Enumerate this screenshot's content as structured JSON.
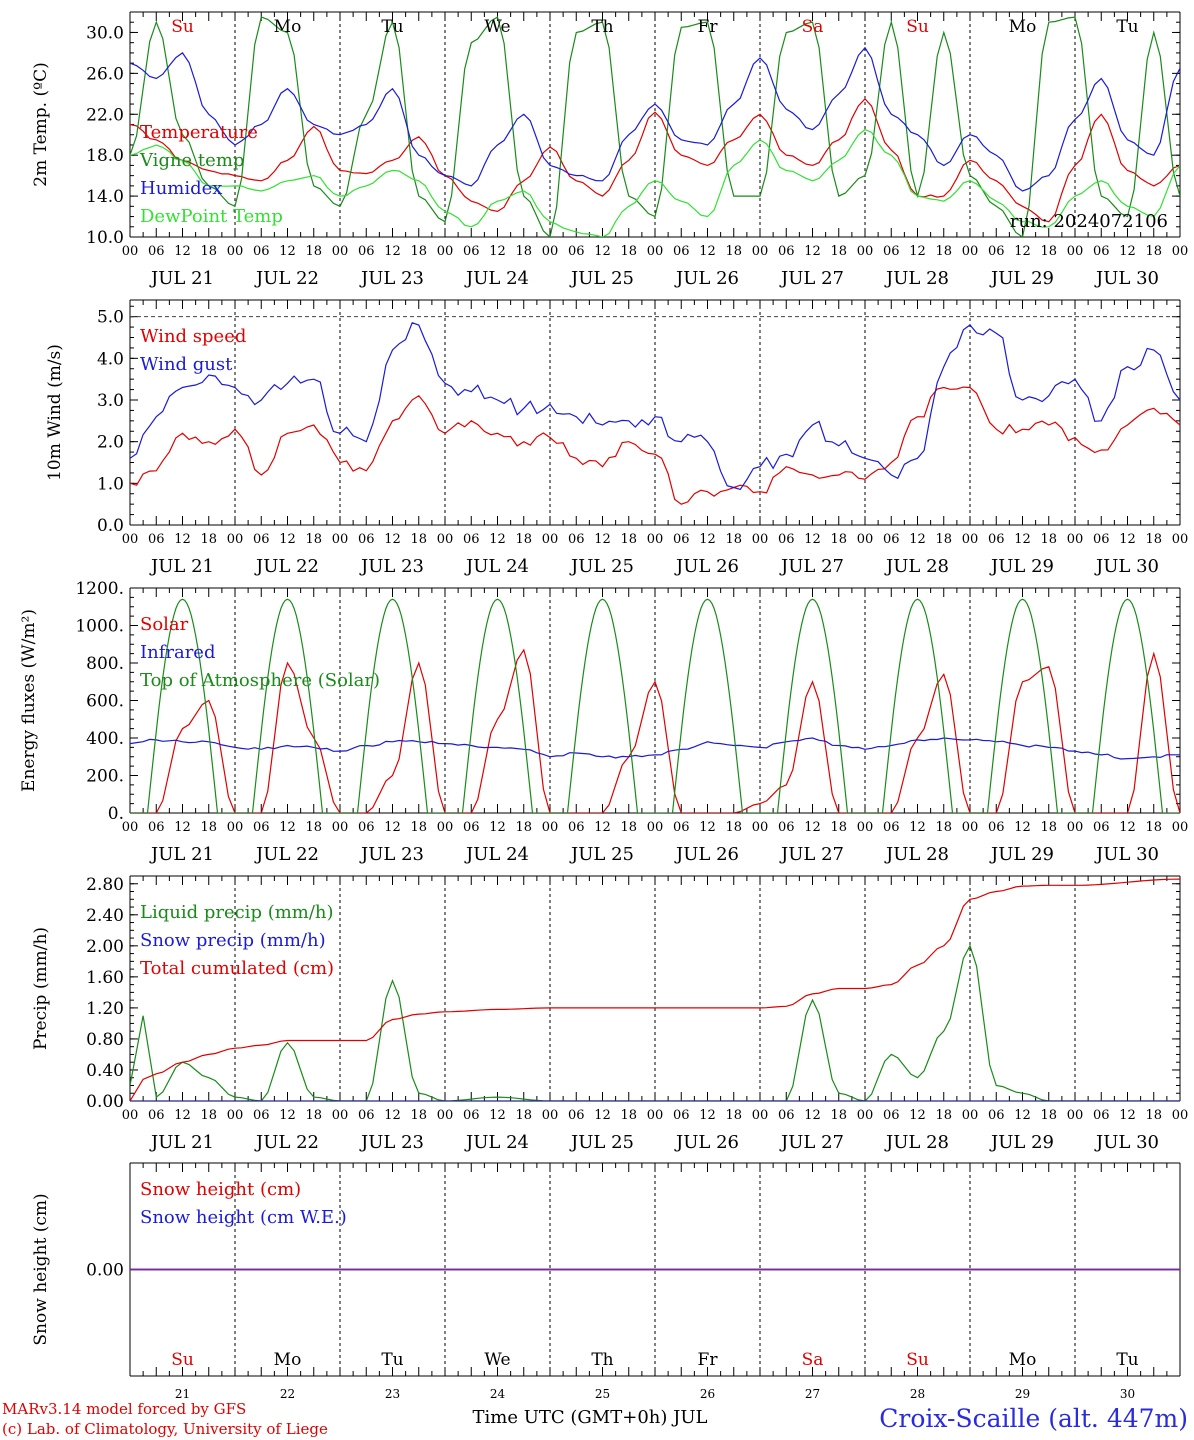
{
  "colors": {
    "red": "#e00000",
    "green": "#1a8a1a",
    "blue": "#1a1ad8",
    "lightgreen": "#33e033",
    "purple": "#7a2a9a",
    "black": "#000000"
  },
  "weekdays": [
    {
      "label": "Su",
      "color": "#e00000"
    },
    {
      "label": "Mo",
      "color": "#000000"
    },
    {
      "label": "Tu",
      "color": "#000000"
    },
    {
      "label": "We",
      "color": "#000000"
    },
    {
      "label": "Th",
      "color": "#000000"
    },
    {
      "label": "Fr",
      "color": "#000000"
    },
    {
      "label": "Sa",
      "color": "#e00000"
    },
    {
      "label": "Su",
      "color": "#e00000"
    },
    {
      "label": "Mo",
      "color": "#000000"
    },
    {
      "label": "Tu",
      "color": "#000000"
    }
  ],
  "day_labels": [
    "JUL 21",
    "JUL 22",
    "JUL 23",
    "JUL 24",
    "JUL 25",
    "JUL 26",
    "JUL 27",
    "JUL 28",
    "JUL 29",
    "JUL 30"
  ],
  "day_numbers": [
    "21",
    "22",
    "23",
    "24",
    "25",
    "26",
    "27",
    "28",
    "29",
    "30"
  ],
  "hour_labels": [
    "00",
    "06",
    "12",
    "18"
  ],
  "footer": {
    "model": "MARv3.14 model forced by GFS",
    "credit": "(c) Lab. of Climatology, University of Liege",
    "xlabel": "Time UTC (GMT+0h) JUL",
    "station": "Croix-Scaille (alt. 447m)"
  },
  "chart_data": [
    {
      "type": "line",
      "ylabel": "2m Temp. (ºC)",
      "ylim": [
        10,
        32
      ],
      "yticks": [
        "10.0",
        "14.0",
        "18.0",
        "22.0",
        "26.0",
        "30.0"
      ],
      "run_label": "run: 2024072106",
      "x_hours": [
        0,
        6,
        12,
        18,
        24,
        30,
        36,
        42,
        48,
        54,
        60,
        66,
        72,
        78,
        84,
        90,
        96,
        102,
        108,
        114,
        120,
        126,
        132,
        138,
        144,
        150,
        156,
        162,
        168,
        174,
        180,
        186,
        192,
        198,
        204,
        210,
        216,
        222,
        228,
        234,
        240
      ],
      "series": [
        {
          "name": "Temperature",
          "color": "#e00000",
          "values": [
            21.0,
            19.5,
            17.5,
            16.5,
            16.0,
            15.5,
            17.5,
            20.8,
            16.5,
            16.2,
            17.5,
            19.8,
            16.0,
            13.5,
            12.5,
            15.5,
            18.8,
            15.5,
            14.0,
            17.5,
            22.2,
            18.0,
            17.0,
            19.5,
            22.0,
            18.0,
            17.0,
            19.5,
            23.5,
            18.5,
            14.0,
            14.0,
            17.5,
            15.5,
            13.0,
            11.5,
            17.0,
            22.0,
            16.5,
            15.0,
            17.0
          ]
        },
        {
          "name": "Vigne temp",
          "color": "#1a8a1a",
          "values": [
            18.0,
            31.0,
            20.0,
            15.0,
            13.0,
            31.5,
            30.0,
            15.0,
            13.0,
            22.0,
            31.0,
            14.0,
            11.5,
            29.0,
            31.5,
            14.0,
            10.0,
            30.0,
            31.0,
            14.0,
            12.0,
            30.5,
            31.0,
            14.0,
            14.0,
            30.0,
            31.0,
            14.0,
            16.0,
            31.0,
            14.0,
            30.0,
            16.0,
            13.0,
            10.0,
            31.0,
            31.5,
            14.0,
            12.0,
            30.0,
            14.0
          ]
        },
        {
          "name": "Humidex",
          "color": "#1a1ad8",
          "values": [
            27.0,
            25.5,
            28.0,
            22.0,
            19.0,
            21.0,
            24.5,
            21.0,
            20.0,
            21.0,
            24.5,
            18.0,
            16.0,
            15.0,
            19.0,
            22.0,
            17.0,
            16.0,
            15.5,
            20.0,
            23.0,
            19.5,
            19.0,
            23.0,
            27.5,
            22.5,
            20.5,
            24.0,
            28.5,
            22.0,
            20.0,
            17.0,
            20.0,
            18.0,
            14.5,
            16.0,
            21.5,
            25.5,
            19.5,
            18.0,
            26.5
          ]
        },
        {
          "name": "DewPoint Temp",
          "color": "#33e033",
          "values": [
            18.0,
            19.0,
            17.5,
            15.0,
            15.0,
            14.5,
            15.5,
            16.0,
            14.0,
            15.0,
            16.5,
            15.5,
            12.5,
            11.0,
            13.5,
            14.5,
            11.5,
            10.5,
            10.0,
            13.0,
            15.5,
            13.5,
            12.0,
            17.0,
            19.5,
            16.5,
            15.5,
            17.5,
            20.5,
            18.0,
            14.0,
            13.5,
            15.5,
            13.5,
            11.5,
            11.0,
            14.0,
            15.5,
            13.0,
            12.0,
            17.0
          ]
        }
      ]
    },
    {
      "type": "line",
      "ylabel": "10m Wind (m/s)",
      "ylim": [
        0,
        5.4
      ],
      "yticks": [
        "0.0",
        "1.0",
        "2.0",
        "3.0",
        "4.0",
        "5.0"
      ],
      "ref_line": 5.0,
      "x_hours": [
        0,
        6,
        12,
        18,
        24,
        30,
        36,
        42,
        48,
        54,
        60,
        66,
        72,
        78,
        84,
        90,
        96,
        102,
        108,
        114,
        120,
        126,
        132,
        138,
        144,
        150,
        156,
        162,
        168,
        174,
        180,
        186,
        192,
        198,
        204,
        210,
        216,
        222,
        228,
        234,
        240
      ],
      "series": [
        {
          "name": "Wind speed",
          "color": "#e00000",
          "values": [
            1.0,
            1.3,
            2.2,
            2.0,
            2.3,
            1.2,
            2.2,
            2.4,
            1.5,
            1.3,
            2.5,
            3.1,
            2.2,
            2.5,
            2.2,
            2.0,
            2.1,
            1.6,
            1.4,
            2.0,
            1.7,
            0.5,
            0.8,
            0.9,
            0.8,
            1.4,
            1.2,
            1.2,
            1.1,
            1.5,
            2.6,
            3.3,
            3.3,
            2.3,
            2.3,
            2.4,
            2.1,
            1.8,
            2.4,
            2.8,
            2.4
          ]
        },
        {
          "name": "Wind gust",
          "color": "#1a1ad8",
          "values": [
            1.6,
            2.6,
            3.3,
            3.6,
            3.3,
            3.0,
            3.4,
            3.5,
            2.2,
            2.0,
            4.2,
            4.8,
            3.4,
            3.2,
            3.0,
            2.8,
            2.9,
            2.6,
            2.4,
            2.5,
            2.6,
            2.0,
            2.0,
            0.9,
            1.4,
            1.7,
            2.4,
            1.9,
            1.6,
            1.2,
            1.6,
            3.8,
            4.8,
            4.6,
            3.0,
            3.1,
            3.5,
            2.5,
            3.8,
            4.2,
            3.0
          ]
        }
      ]
    },
    {
      "type": "line",
      "ylabel": "Energy fluxes (W/m²)",
      "ylim": [
        0,
        1200
      ],
      "yticks": [
        "0.",
        "200.",
        "400.",
        "600.",
        "800.",
        "1000.",
        "1200."
      ],
      "x_hours": [
        0,
        6,
        12,
        18,
        24,
        30,
        36,
        42,
        48,
        54,
        60,
        66,
        72,
        78,
        84,
        90,
        96,
        102,
        108,
        114,
        120,
        126,
        132,
        138,
        144,
        150,
        156,
        162,
        168,
        174,
        180,
        186,
        192,
        198,
        204,
        210,
        216,
        222,
        228,
        234,
        240
      ],
      "series": [
        {
          "name": "Solar",
          "color": "#e00000",
          "values": [
            0,
            0,
            450,
            600,
            0,
            0,
            800,
            400,
            0,
            0,
            200,
            800,
            0,
            0,
            500,
            870,
            0,
            0,
            0,
            300,
            700,
            0,
            0,
            0,
            50,
            150,
            700,
            0,
            0,
            0,
            400,
            740,
            0,
            0,
            700,
            780,
            0,
            0,
            0,
            850,
            0
          ]
        },
        {
          "name": "Infrared",
          "color": "#1a1ad8",
          "values": [
            370,
            390,
            380,
            380,
            350,
            340,
            360,
            350,
            330,
            360,
            380,
            380,
            370,
            360,
            350,
            340,
            300,
            320,
            300,
            300,
            310,
            340,
            380,
            360,
            350,
            380,
            400,
            360,
            340,
            360,
            390,
            400,
            390,
            380,
            360,
            350,
            330,
            310,
            290,
            300,
            310
          ]
        },
        {
          "name": "Top of Atmosphere (Solar)",
          "color": "#1a8a1a",
          "values": [
            0,
            0,
            0,
            0,
            0,
            0,
            0,
            0,
            0,
            0,
            0,
            0,
            0,
            0,
            0,
            0,
            0,
            0,
            0,
            0,
            0,
            0,
            0,
            0,
            0,
            0,
            0,
            0,
            0,
            0,
            0,
            0,
            0,
            0,
            0,
            0,
            0,
            0,
            0,
            0,
            0
          ],
          "peak": 1140,
          "day_start_hour": 4,
          "day_end_hour": 20
        }
      ]
    },
    {
      "type": "line",
      "ylabel": "Precip (mm/h)",
      "ylim": [
        0,
        2.9
      ],
      "yticks": [
        "0.00",
        "0.40",
        "0.80",
        "1.20",
        "1.60",
        "2.00",
        "2.40",
        "2.80"
      ],
      "x_hours": [
        0,
        3,
        6,
        12,
        18,
        24,
        30,
        36,
        42,
        48,
        54,
        60,
        66,
        72,
        84,
        96,
        120,
        144,
        150,
        156,
        162,
        168,
        174,
        180,
        186,
        192,
        198,
        204,
        210,
        216,
        240
      ],
      "series": [
        {
          "name": "Liquid precip (mm/h)",
          "color": "#1a8a1a",
          "values": [
            0.2,
            1.1,
            0.05,
            0.5,
            0.3,
            0.05,
            0.0,
            0.75,
            0.05,
            0.0,
            0.0,
            1.55,
            0.1,
            0.0,
            0.05,
            0.0,
            0.0,
            0.0,
            0.0,
            1.3,
            0.1,
            0.0,
            0.6,
            0.3,
            0.9,
            2.0,
            0.2,
            0.1,
            0.0,
            0.0,
            0.0
          ]
        },
        {
          "name": "Snow precip (mm/h)",
          "color": "#1a1ad8",
          "values": [
            0,
            0,
            0,
            0,
            0,
            0,
            0,
            0,
            0,
            0,
            0,
            0,
            0,
            0,
            0,
            0,
            0,
            0,
            0,
            0,
            0,
            0,
            0,
            0,
            0,
            0,
            0,
            0,
            0,
            0,
            0
          ]
        },
        {
          "name": "Total cumulated (cm)",
          "color": "#e00000",
          "values": [
            0.0,
            0.28,
            0.35,
            0.5,
            0.6,
            0.68,
            0.72,
            0.78,
            0.78,
            0.78,
            0.78,
            1.05,
            1.12,
            1.15,
            1.18,
            1.2,
            1.2,
            1.2,
            1.22,
            1.38,
            1.45,
            1.45,
            1.5,
            1.75,
            2.0,
            2.6,
            2.7,
            2.77,
            2.78,
            2.78,
            2.86
          ]
        }
      ]
    },
    {
      "type": "line",
      "ylabel": "Snow height (cm)",
      "ylim": [
        -1,
        1
      ],
      "yticks": [
        "0.00"
      ],
      "x_hours": [
        0,
        240
      ],
      "series": [
        {
          "name": "Snow height (cm)",
          "color": "#e00000",
          "values": [
            0,
            0
          ]
        },
        {
          "name": "Snow height (cm W.E.)",
          "color": "#1a1ad8",
          "values": [
            0,
            0
          ]
        }
      ]
    }
  ]
}
